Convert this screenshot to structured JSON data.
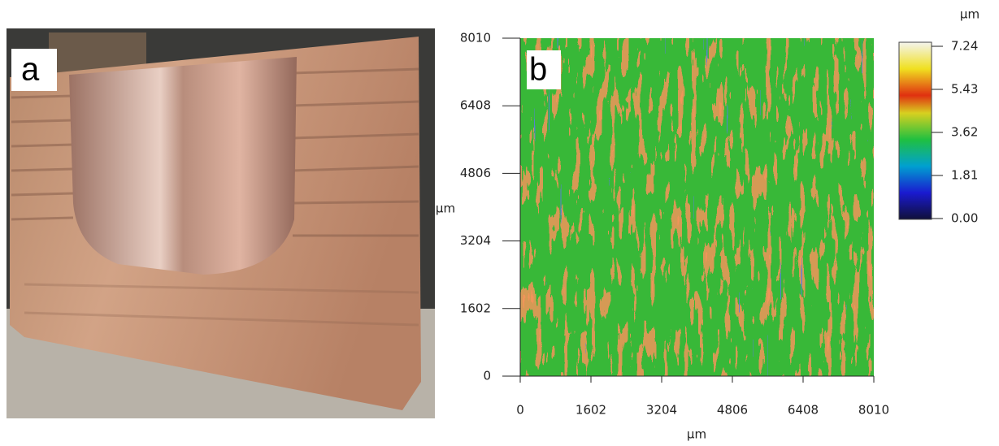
{
  "panel_a": {
    "label": "a"
  },
  "chart_data": {
    "type": "heatmap",
    "label": "b",
    "xlabel": "µm",
    "ylabel": "µm",
    "xlim": [
      0,
      8010
    ],
    "ylim": [
      0,
      8010
    ],
    "xticks": [
      0,
      1602,
      3204,
      4806,
      6408,
      8010
    ],
    "yticks": [
      0,
      1602,
      3204,
      4806,
      6408,
      8010
    ],
    "colorbar": {
      "unit": "µm",
      "clim": [
        0,
        7.24
      ],
      "ticks": [
        {
          "value": 0,
          "label": "0.00"
        },
        1.81,
        3.62,
        5.43,
        7.24
      ]
    }
  }
}
